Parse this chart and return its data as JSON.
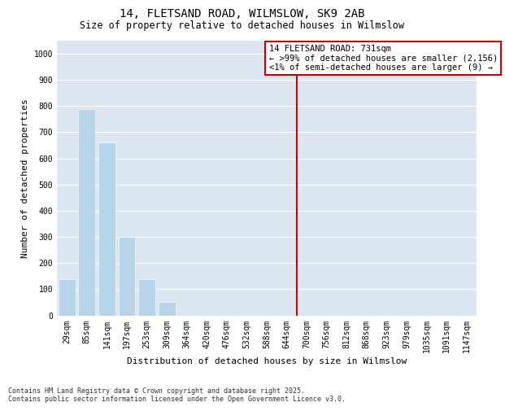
{
  "title_line1": "14, FLETSAND ROAD, WILMSLOW, SK9 2AB",
  "title_line2": "Size of property relative to detached houses in Wilmslow",
  "xlabel": "Distribution of detached houses by size in Wilmslow",
  "ylabel": "Number of detached properties",
  "categories": [
    "29sqm",
    "85sqm",
    "141sqm",
    "197sqm",
    "253sqm",
    "309sqm",
    "364sqm",
    "420sqm",
    "476sqm",
    "532sqm",
    "588sqm",
    "644sqm",
    "700sqm",
    "756sqm",
    "812sqm",
    "868sqm",
    "923sqm",
    "979sqm",
    "1035sqm",
    "1091sqm",
    "1147sqm"
  ],
  "values": [
    140,
    790,
    660,
    300,
    140,
    50,
    0,
    0,
    0,
    0,
    0,
    0,
    0,
    0,
    0,
    0,
    0,
    0,
    0,
    0,
    0
  ],
  "bar_color": "#b8d4e8",
  "vline_index": 12,
  "vline_color": "#cc0000",
  "legend_line1": "14 FLETSAND ROAD: 731sqm",
  "legend_line2": "← >99% of detached houses are smaller (2,156)",
  "legend_line3": "<1% of semi-detached houses are larger (9) →",
  "legend_box_color": "#cc0000",
  "ylim": [
    0,
    1050
  ],
  "yticks": [
    0,
    100,
    200,
    300,
    400,
    500,
    600,
    700,
    800,
    900,
    1000
  ],
  "background_color": "#dce6f1",
  "footer_line1": "Contains HM Land Registry data © Crown copyright and database right 2025.",
  "footer_line2": "Contains public sector information licensed under the Open Government Licence v3.0.",
  "title_fontsize": 10,
  "subtitle_fontsize": 8.5,
  "axis_label_fontsize": 8,
  "tick_fontsize": 7,
  "legend_fontsize": 7.5,
  "footer_fontsize": 6
}
